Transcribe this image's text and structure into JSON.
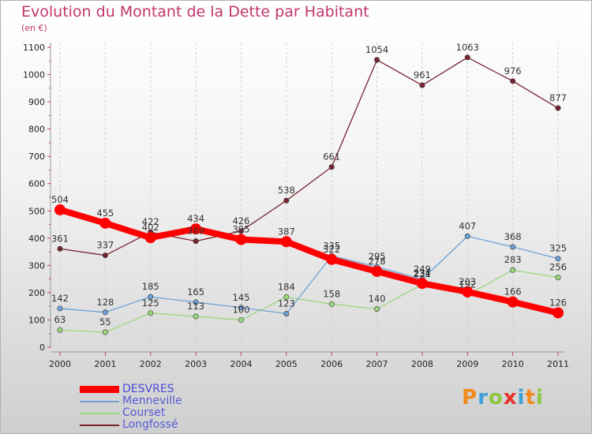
{
  "title": "Evolution du Montant de la Dette par Habitant",
  "subtitle": "(en €)",
  "logo": {
    "letters": [
      "P",
      "r",
      "o",
      "x",
      "i",
      "t",
      "i"
    ],
    "colors": [
      "#f08a1c",
      "#3ca0d8",
      "#8cc63f",
      "#e8302a",
      "#3ca0d8",
      "#f08a1c",
      "#8cc63f"
    ]
  },
  "chart_data": {
    "type": "line",
    "x": [
      "2000",
      "2001",
      "2002",
      "2003",
      "2004",
      "2005",
      "2006",
      "2007",
      "2008",
      "2009",
      "2010",
      "2011"
    ],
    "yticks": [
      "0",
      "100",
      "200",
      "300",
      "400",
      "500",
      "600",
      "700",
      "800",
      "900",
      "1000",
      "1100"
    ],
    "ylim": [
      0,
      1100
    ],
    "grid": "vertical dashed",
    "legend_position": "bottom-left",
    "series": [
      {
        "name": "Longfossé",
        "color": "#7a2330",
        "values": [
          361,
          337,
          422,
          389,
          426,
          538,
          661,
          1054,
          961,
          1063,
          976,
          877
        ],
        "labels": [
          "361",
          "337",
          "422",
          "389",
          "426",
          "538",
          "661",
          "1054",
          "961",
          "1063",
          "976",
          "877"
        ]
      },
      {
        "name": "Courset",
        "color": "#9bd77e",
        "values": [
          63,
          55,
          125,
          113,
          100,
          184,
          158,
          140,
          231,
          192,
          283,
          256
        ],
        "labels": [
          "63",
          "55",
          "125",
          "113",
          "100",
          "184",
          "158",
          "140",
          "231",
          "192",
          "283",
          "256"
        ]
      },
      {
        "name": "Menneville",
        "color": "#6fa2d6",
        "values": [
          142,
          128,
          185,
          165,
          145,
          123,
          335,
          295,
          249,
          407,
          368,
          325
        ],
        "labels": [
          "142",
          "128",
          "185",
          "165",
          "145",
          "123",
          "335",
          "295",
          "249",
          "407",
          "368",
          "325"
        ]
      },
      {
        "name": "DESVRES",
        "color": "#ff0000",
        "values": [
          504,
          455,
          402,
          434,
          395,
          387,
          322,
          278,
          234,
          203,
          166,
          126
        ],
        "labels": [
          "504",
          "455",
          "402",
          "434",
          "395",
          "387",
          "322",
          "278",
          "234",
          "203",
          "166",
          "126"
        ]
      }
    ],
    "legend": [
      "DESVRES",
      "Menneville",
      "Courset",
      "Longfossé"
    ]
  }
}
